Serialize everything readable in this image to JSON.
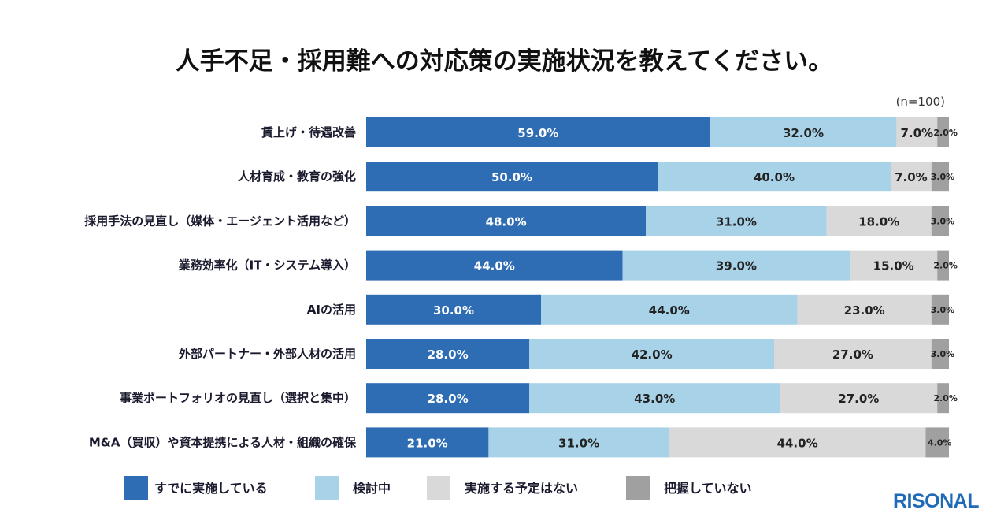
{
  "chart_data": {
    "type": "bar",
    "orientation": "horizontal",
    "stacked": true,
    "title": "人手不足・採用難への対応策の実施状況を教えてください。",
    "note": "(n=100)",
    "categories": [
      "賃上げ・待遇改善",
      "人材育成・教育の強化",
      "採用手法の見直し（媒体・エージェント活用など）",
      "業務効率化（IT・システム導入）",
      "AIの活用",
      "外部パートナー・外部人材の活用",
      "事業ポートフォリオの見直し（選択と集中）",
      "M&A（買収）や資本提携による人材・組織の確保"
    ],
    "series": [
      {
        "name": "すでに実施している",
        "color": "#2e6db4",
        "values": [
          59.0,
          50.0,
          48.0,
          44.0,
          30.0,
          28.0,
          28.0,
          21.0
        ]
      },
      {
        "name": "検討中",
        "color": "#a8d2e7",
        "values": [
          32.0,
          40.0,
          31.0,
          39.0,
          44.0,
          42.0,
          43.0,
          31.0
        ]
      },
      {
        "name": "実施する予定はない",
        "color": "#d9d9d9",
        "values": [
          7.0,
          7.0,
          18.0,
          15.0,
          23.0,
          27.0,
          27.0,
          44.0
        ]
      },
      {
        "name": "把握していない",
        "color": "#a0a0a0",
        "values": [
          2.0,
          3.0,
          3.0,
          2.0,
          3.0,
          3.0,
          2.0,
          4.0
        ]
      }
    ],
    "xlim": [
      0,
      100
    ],
    "value_format": "percent_1dp",
    "legend_position": "bottom",
    "grid": false
  },
  "brand": {
    "logo_text": "RISONAL",
    "color": "#1f6bb8"
  }
}
